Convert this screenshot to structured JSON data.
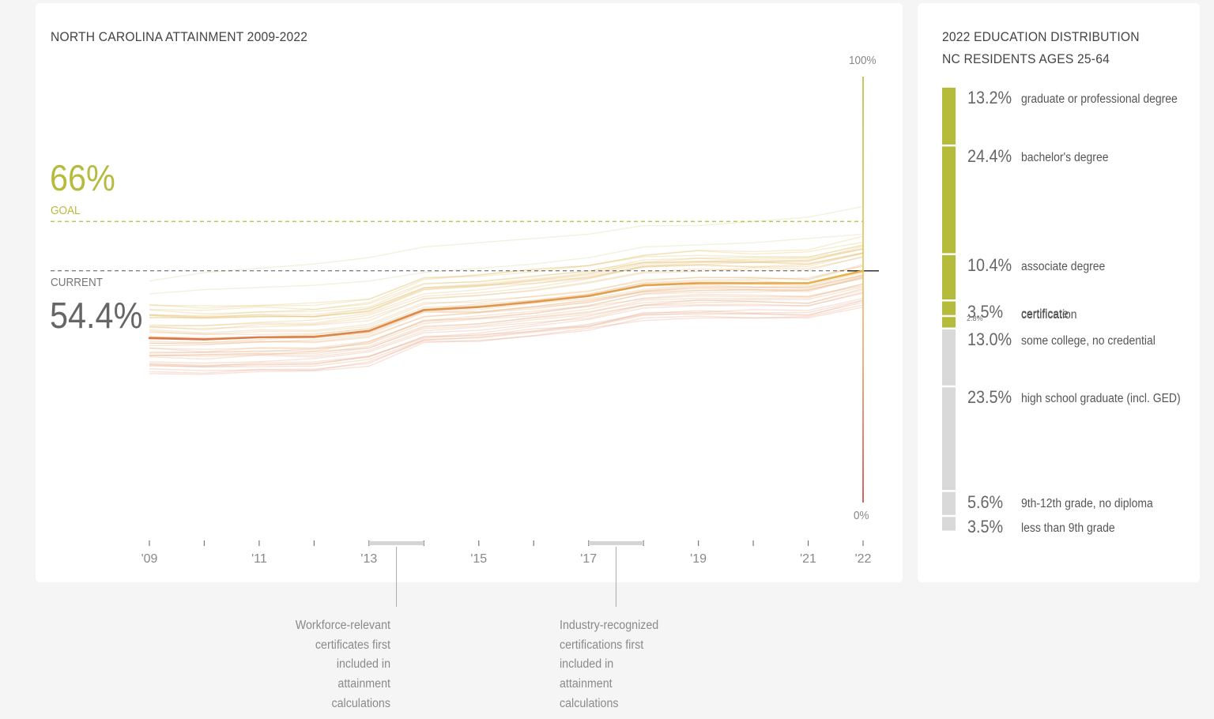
{
  "main": {
    "title": "NORTH CAROLINA ATTAINMENT 2009-2022",
    "goal_value": "66%",
    "goal_label": "GOAL",
    "current_label": "CURRENT",
    "current_value": "54.4%",
    "axis_top_label": "100%",
    "axis_bottom_label": "0%",
    "notes": [
      {
        "text_lines": [
          "Workforce-relevant",
          "certificates first",
          "included in",
          "attainment",
          "calculations"
        ]
      },
      {
        "text_lines": [
          "Industry-recognized",
          "certifications first",
          "included in",
          "attainment",
          "calculations"
        ]
      }
    ]
  },
  "chart_data": [
    {
      "type": "line",
      "title": "NORTH CAROLINA ATTAINMENT 2009-2022",
      "x": [
        2009,
        2010,
        2011,
        2012,
        2013,
        2014,
        2015,
        2016,
        2017,
        2018,
        2019,
        2020,
        2021,
        2022
      ],
      "xtick_labels": [
        "'09",
        "",
        "'11",
        "",
        "'13",
        "",
        "'15",
        "",
        "'17",
        "",
        "'19",
        "",
        "'21",
        "'22"
      ],
      "ylim": [
        0,
        100
      ],
      "goal": 66,
      "current": 54.4,
      "highlight_bands": [
        [
          2013,
          2014
        ],
        [
          2017,
          2018
        ]
      ],
      "series": [
        {
          "name": "",
          "highlight": true,
          "values": [
            38.6,
            38.3,
            38.8,
            38.9,
            40.3,
            45.2,
            45.9,
            47.1,
            48.5,
            51.0,
            51.5,
            51.5,
            51.5,
            54.4
          ]
        }
      ],
      "background_lines_count": 40,
      "colors": {
        "goal": "#b6bb3e",
        "current_line": "#444444",
        "highlight_start": "#d9774a",
        "highlight_end": "#e8b24a"
      }
    },
    {
      "type": "bar",
      "title": "2022 EDUCATION DISTRIBUTION",
      "subtitle": "NC RESIDENTS AGES 25-64",
      "categories": [
        "graduate or professional degree",
        "bachelor's degree",
        "associate degree",
        "certificate",
        "certification",
        "some college, no credential",
        "high school graduate (incl. GED)",
        "9th-12th grade, no diploma",
        "less than 9th grade"
      ],
      "values": [
        13.2,
        24.4,
        10.4,
        3.5,
        2.8,
        13.0,
        23.5,
        5.6,
        3.5
      ],
      "labels": [
        "13.2%",
        "24.4%",
        "10.4%",
        "3.5%",
        "2.8%",
        "13.0%",
        "23.5%",
        "5.6%",
        "3.5%"
      ],
      "counted": [
        true,
        true,
        true,
        true,
        true,
        false,
        false,
        false,
        false
      ],
      "colors": {
        "counted": "#b5bc3c",
        "not_counted": "#d9d9d9"
      }
    }
  ],
  "side": {
    "title_line1": "2022 EDUCATION DISTRIBUTION",
    "title_line2": "NC RESIDENTS AGES 25-64"
  }
}
